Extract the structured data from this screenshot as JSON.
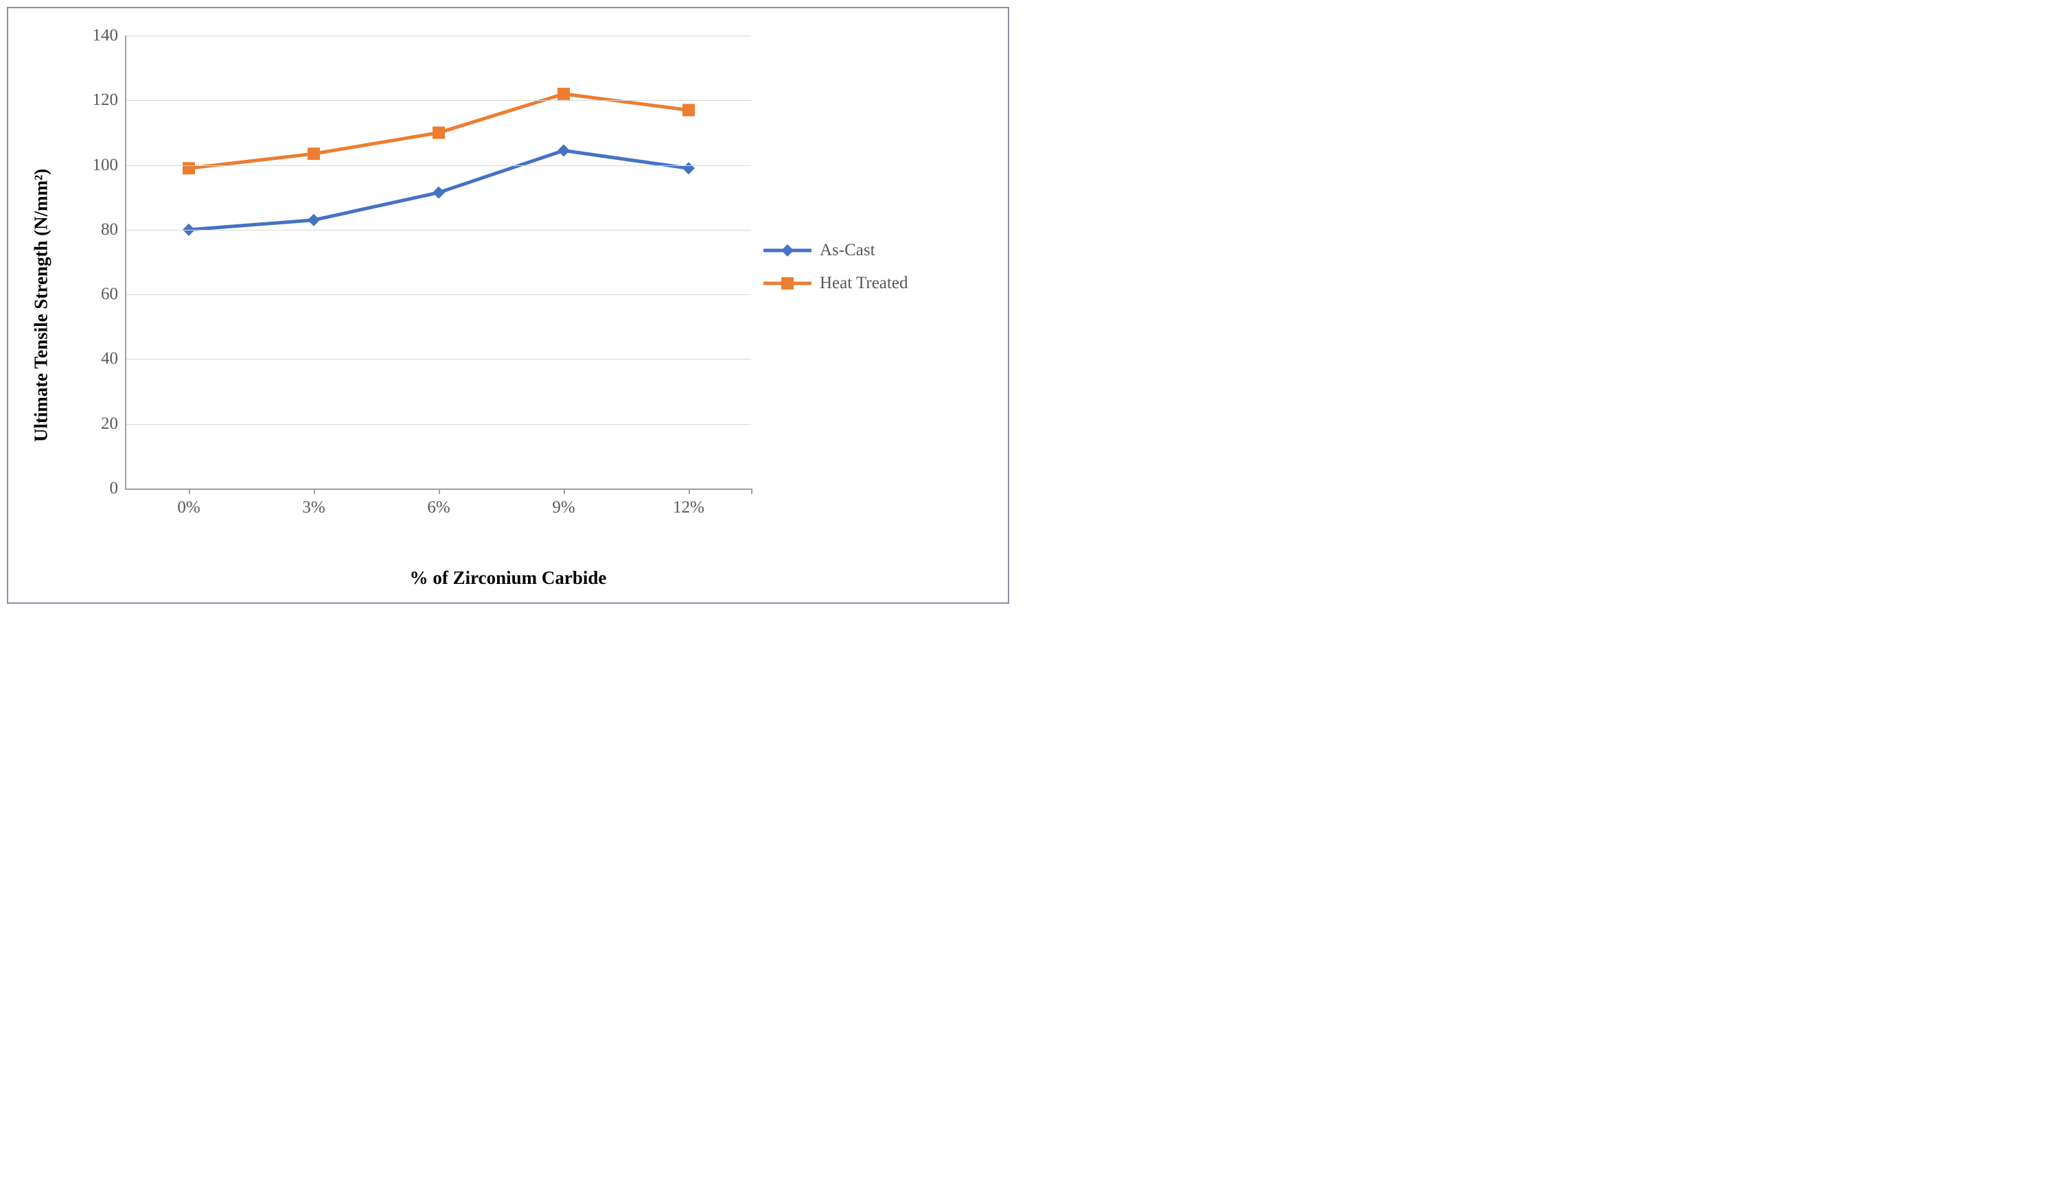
{
  "chart": {
    "type": "line",
    "y_axis_title": "Ultimate Tensile Strength  (N/mm²)",
    "x_axis_title": "% of Zirconium Carbide",
    "categories": [
      "0%",
      "3%",
      "6%",
      "9%",
      "12%"
    ],
    "ylim": [
      0,
      140
    ],
    "ytick_step": 20,
    "ytick_labels": [
      "0",
      "20",
      "40",
      "60",
      "80",
      "100",
      "120",
      "140"
    ],
    "background_color": "#ffffff",
    "grid_color": "#d9d9d9",
    "axis_line_color": "#a0a0a0",
    "tick_label_color": "#595959",
    "tick_fontsize": 25,
    "axis_title_fontsize": 27,
    "axis_title_weight": "bold",
    "outer_border_color": "#8b8fa6",
    "line_width": 5,
    "marker_size": 18,
    "series": [
      {
        "name": "As-Cast",
        "label": "As-Cast",
        "color": "#4472c4",
        "marker": "diamond",
        "values": [
          80,
          83,
          91.5,
          104.5,
          99
        ]
      },
      {
        "name": "Heat Treated",
        "label": "Heat Treated",
        "color": "#ed7d31",
        "marker": "square",
        "values": [
          99,
          103.5,
          110,
          122,
          117
        ]
      }
    ],
    "legend": {
      "position": "right",
      "fontsize": 25,
      "text_color": "#595959"
    }
  }
}
